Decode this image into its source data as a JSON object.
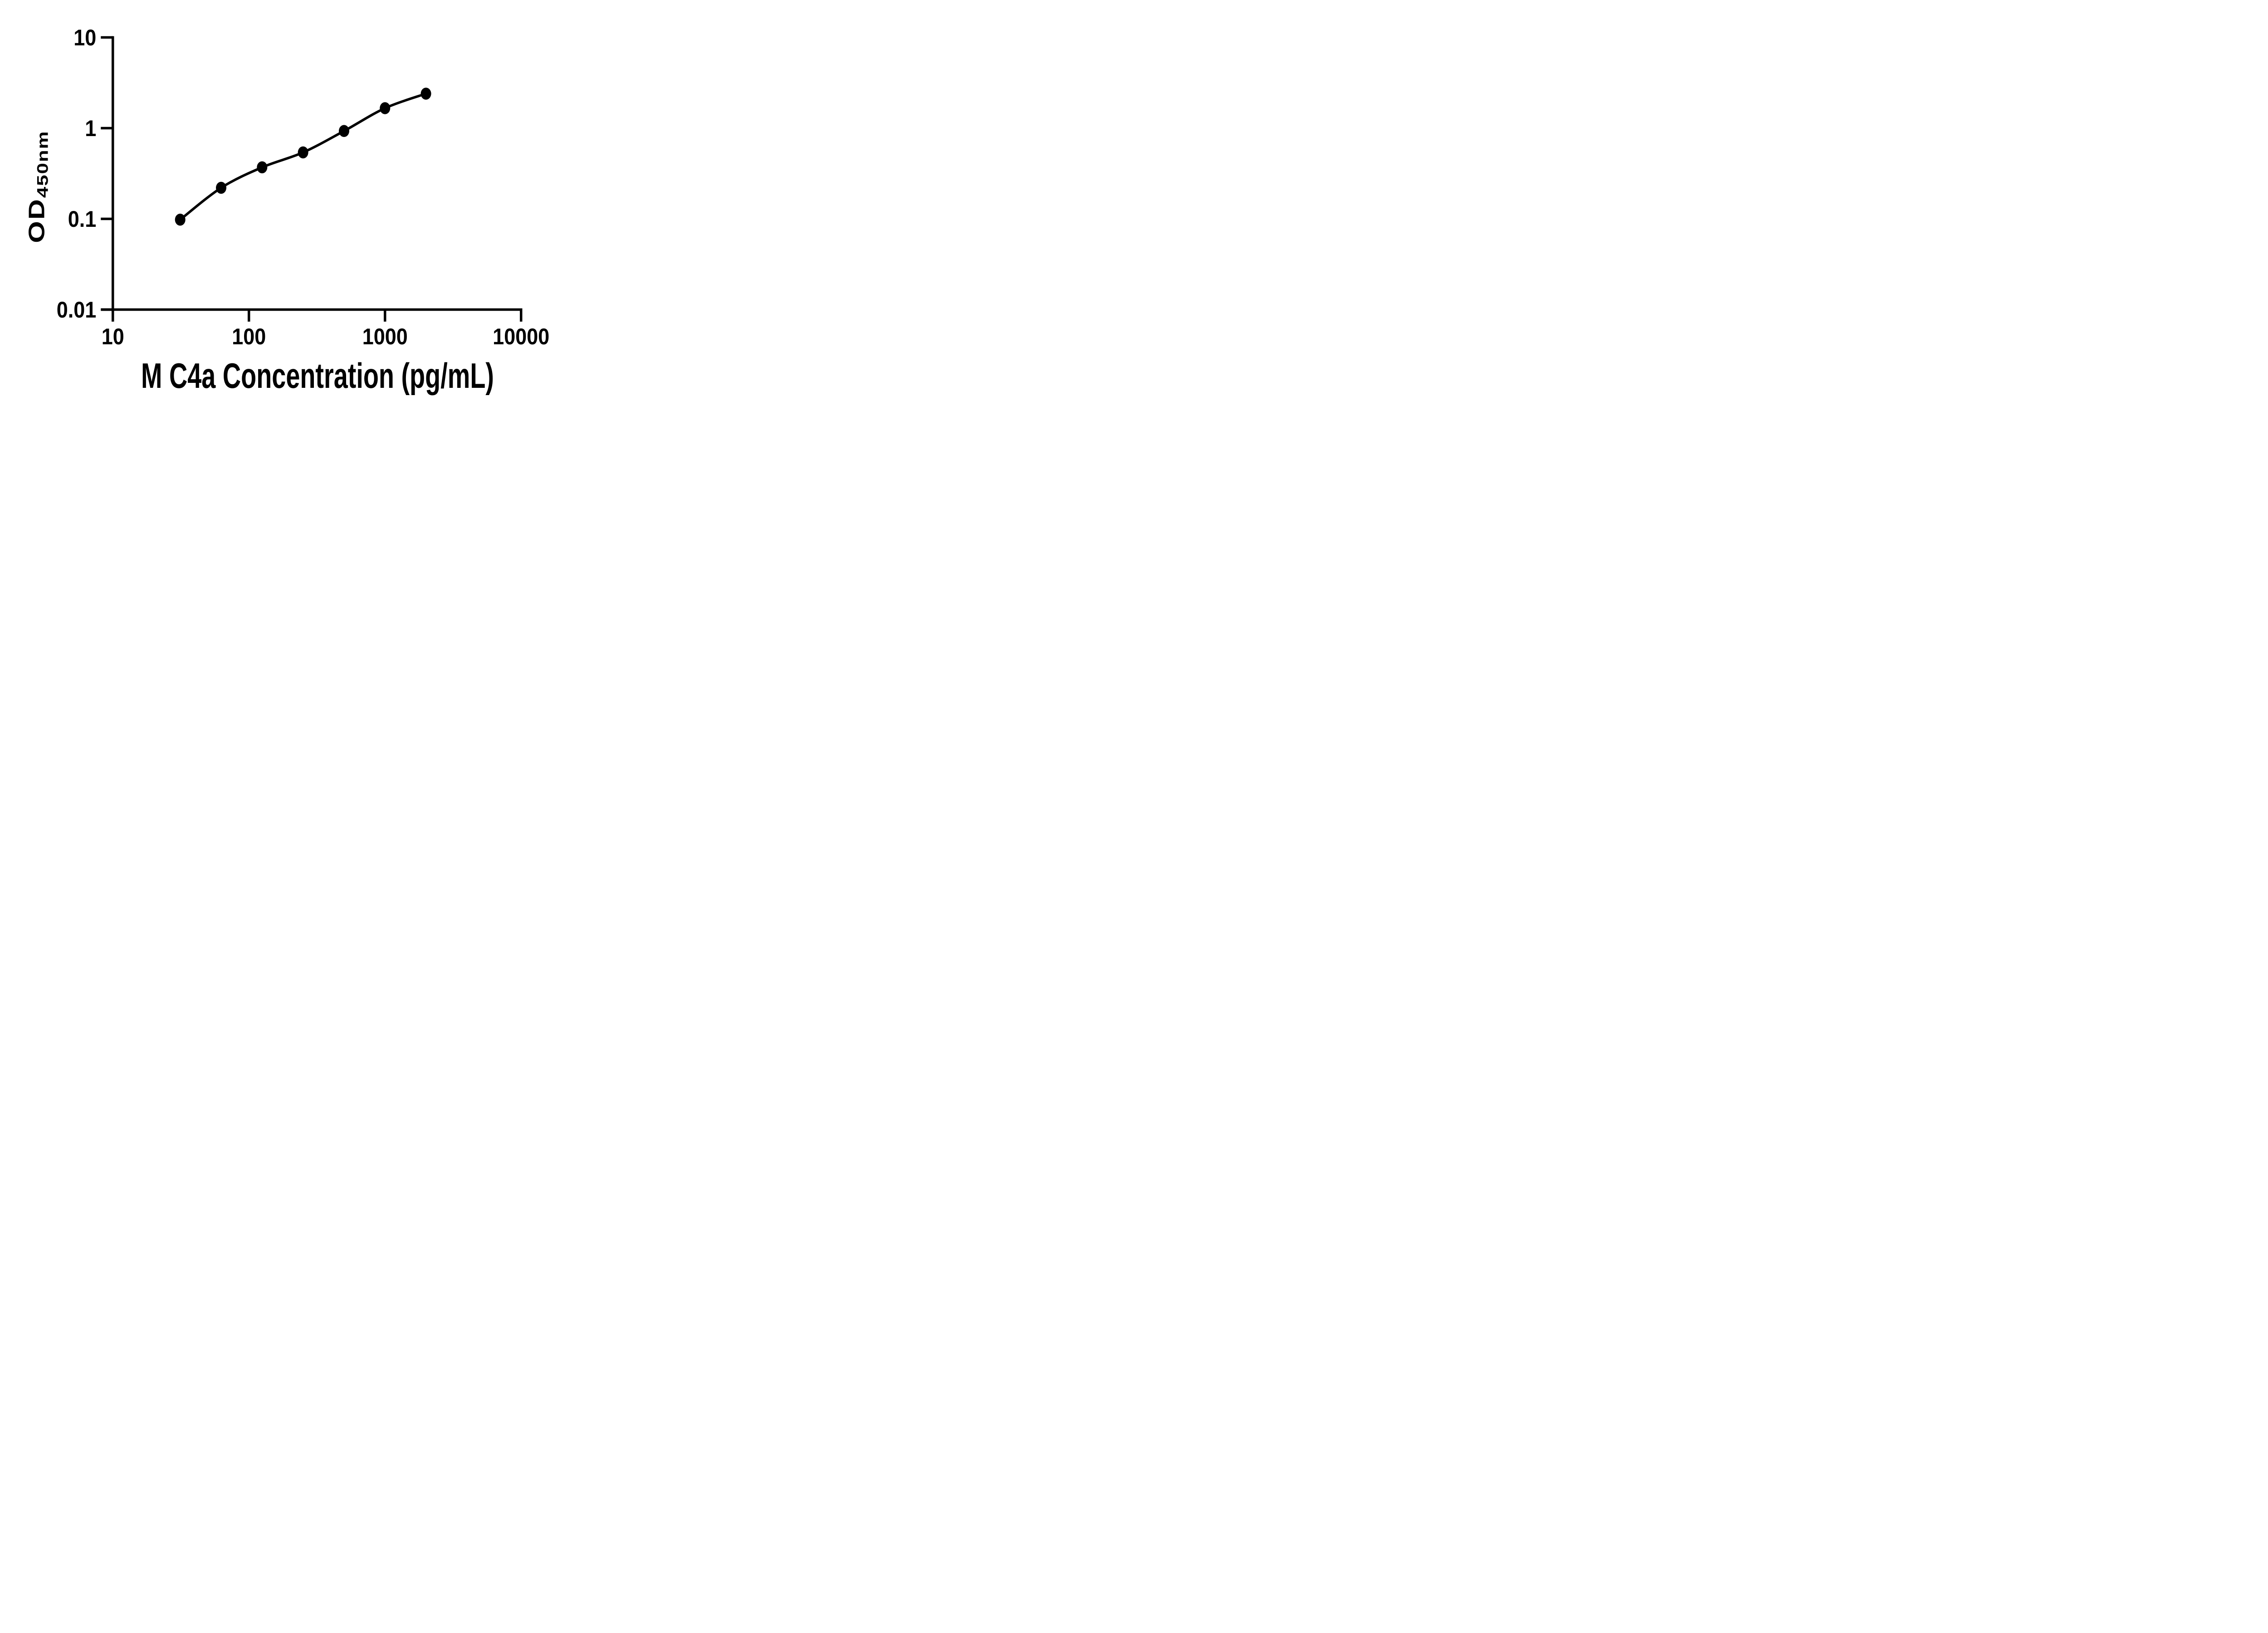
{
  "figure": {
    "background_color": "#ffffff",
    "ink_color": "#000000",
    "description": "ELISA standard curve, log-log scatter plot with fitted smooth curve, black on white, no grid, no legend"
  },
  "chart_data": {
    "type": "scatter",
    "title": "",
    "xlabel": "M C4a Concentration (pg/mL)",
    "ylabel_main": "OD",
    "ylabel_sub": "450nm",
    "x_scale": "log10",
    "y_scale": "log10",
    "xlim": [
      10,
      10000
    ],
    "ylim": [
      0.01,
      10
    ],
    "x_tick_values": [
      10,
      100,
      1000,
      10000
    ],
    "x_tick_labels": [
      "10",
      "100",
      "1000",
      "10000"
    ],
    "y_tick_values": [
      10,
      1,
      0.1,
      0.01
    ],
    "y_tick_labels": [
      "10",
      "1",
      "0.1",
      "0.01"
    ],
    "grid": false,
    "legend_position": "none",
    "series": [
      {
        "name": "standard curve",
        "marker": "filled-circle",
        "marker_color": "#000000",
        "line": "smooth fit curve through points",
        "line_color": "#000000",
        "x": [
          31.25,
          62.5,
          125,
          250,
          500,
          1000,
          2000
        ],
        "y": [
          0.098,
          0.22,
          0.37,
          0.54,
          0.93,
          1.66,
          2.4
        ]
      }
    ]
  }
}
